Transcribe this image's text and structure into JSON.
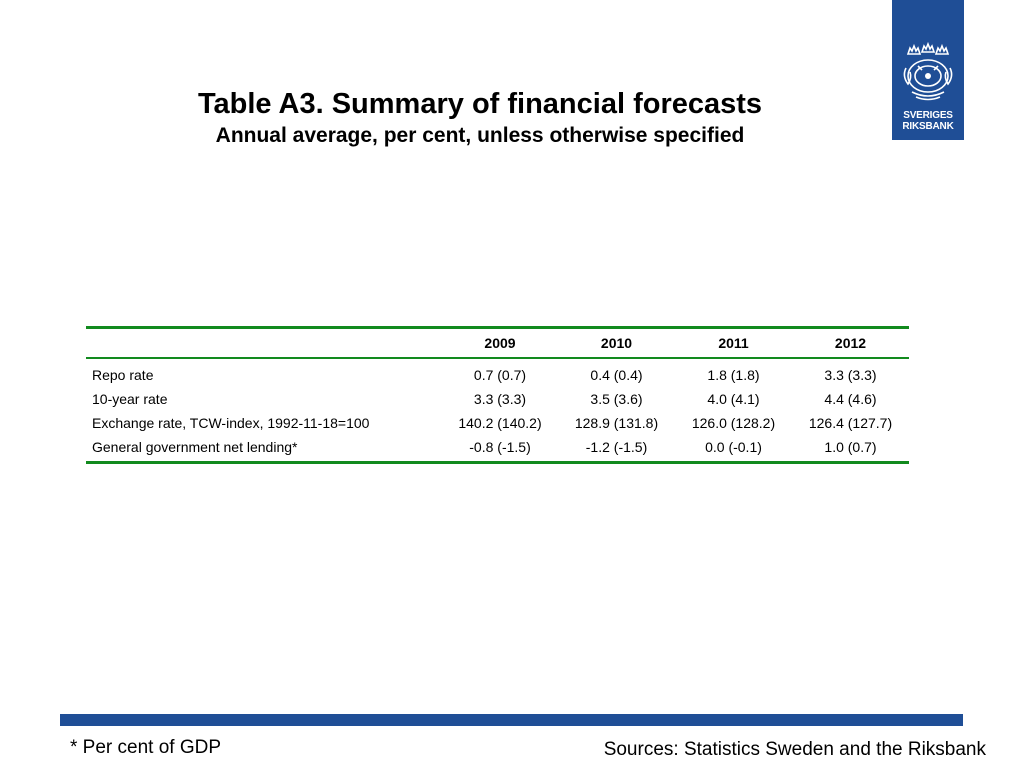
{
  "header": {
    "title": "Table A3. Summary of financial forecasts",
    "subtitle": "Annual average, per cent, unless otherwise specified"
  },
  "logo": {
    "line1": "SVERIGES",
    "line2": "RIKSBANK",
    "background": "#1f4e96",
    "icon": "riksbank-crest-icon"
  },
  "table": {
    "rule_color": "#128a1e",
    "columns": [
      "",
      "2009",
      "2010",
      "2011",
      "2012"
    ],
    "rows": [
      {
        "label": "Repo rate",
        "values": [
          "0.7 (0.7)",
          "0.4 (0.4)",
          "1.8 (1.8)",
          "3.3 (3.3)"
        ]
      },
      {
        "label": "10-year rate",
        "values": [
          "3.3 (3.3)",
          "3.5 (3.6)",
          "4.0 (4.1)",
          "4.4 (4.6)"
        ]
      },
      {
        "label": "Exchange rate, TCW-index, 1992-11-18=100",
        "values": [
          "140.2 (140.2)",
          "128.9 (131.8)",
          "126.0 (128.2)",
          "126.4 (127.7)"
        ]
      },
      {
        "label": "General government net lending*",
        "values": [
          "-0.8 (-1.5)",
          "-1.2 (-1.5)",
          "0.0 (-0.1)",
          "1.0 (0.7)"
        ]
      }
    ]
  },
  "footer": {
    "footnote": "* Per cent of GDP",
    "sources": "Sources: Statistics Sweden and the Riksbank"
  }
}
